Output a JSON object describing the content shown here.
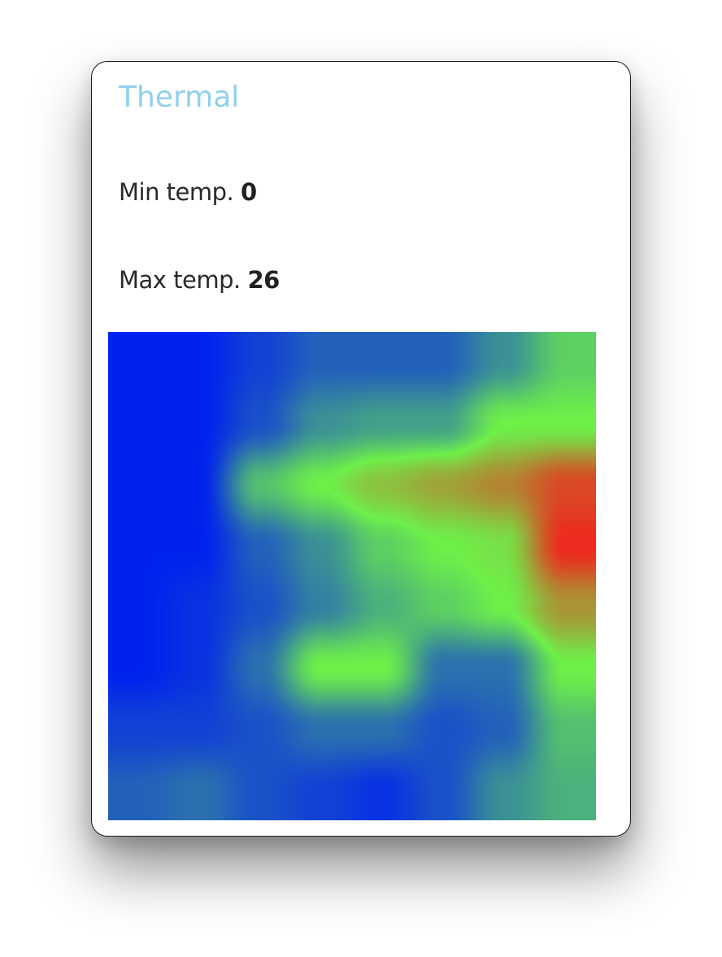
{
  "widget": {
    "title": "Thermal",
    "min_label": "Min temp.",
    "min_value": "0",
    "max_label": "Max temp.",
    "max_value": "26"
  },
  "colors": {
    "title": "#8fd0ea",
    "cold": "#0022ee",
    "mid": "#6ef049",
    "hot": "#ee2a1e"
  },
  "thermal": {
    "min": 0,
    "max": 26,
    "grid": [
      [
        0,
        0,
        2,
        4,
        4,
        4,
        7,
        11
      ],
      [
        0,
        0,
        3,
        7,
        8,
        8,
        13,
        13
      ],
      [
        0,
        0,
        10,
        13,
        16,
        18,
        20,
        24
      ],
      [
        0,
        0,
        4,
        7,
        11,
        13,
        14,
        26
      ],
      [
        0,
        1,
        3,
        6,
        9,
        11,
        13,
        19
      ],
      [
        0,
        1,
        5,
        13,
        13,
        5,
        5,
        13
      ],
      [
        2,
        2,
        3,
        5,
        5,
        3,
        4,
        10
      ],
      [
        4,
        5,
        3,
        2,
        1,
        3,
        7,
        9
      ]
    ]
  }
}
